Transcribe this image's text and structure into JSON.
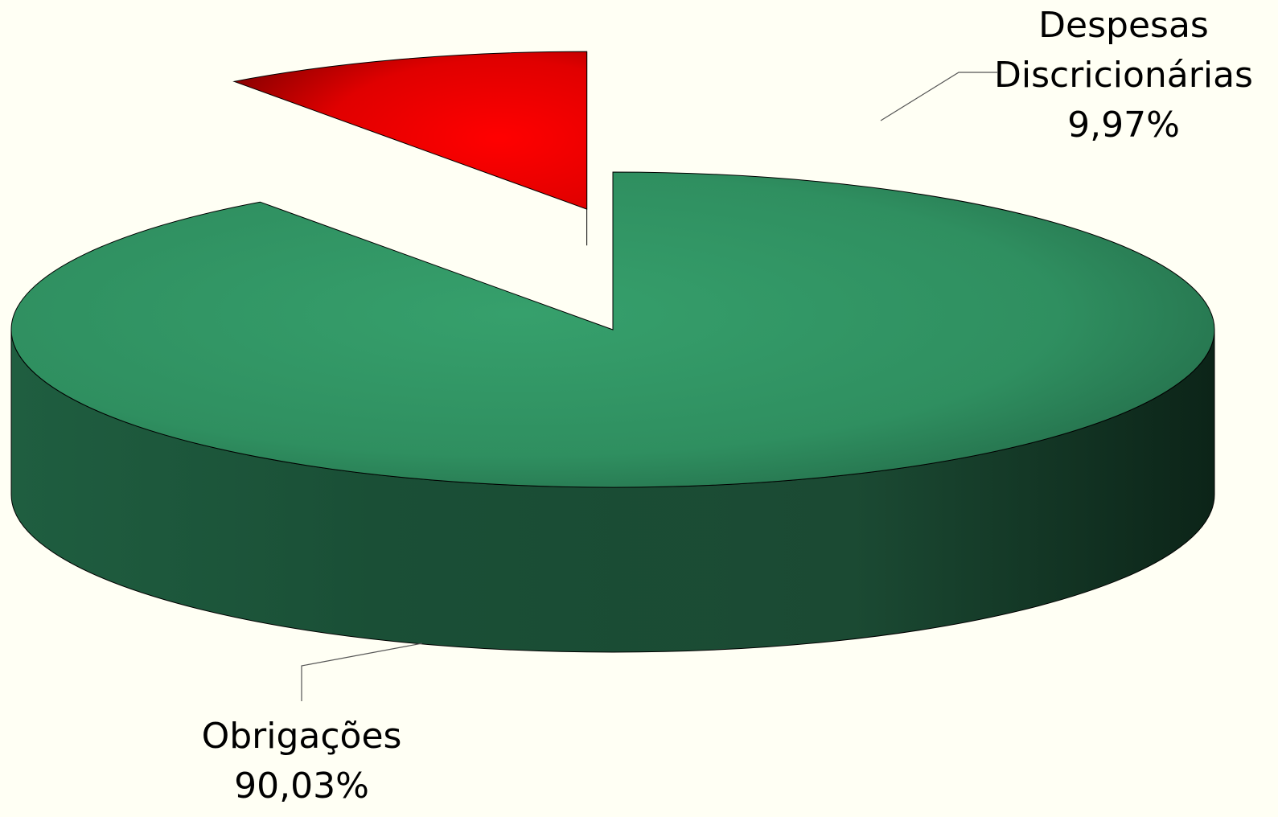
{
  "chart_data": {
    "type": "pie",
    "variant": "3d-exploded",
    "title": "",
    "slices": [
      {
        "label_lines": [
          "Obrigações"
        ],
        "value": 90.03,
        "value_label": "90,03%",
        "color": "#339966",
        "explode": false
      },
      {
        "label_lines": [
          "Despesas",
          "Discricionárias"
        ],
        "value": 9.97,
        "value_label": "9,97%",
        "color": "#ff0000",
        "explode": true
      }
    ],
    "legend": "none"
  }
}
